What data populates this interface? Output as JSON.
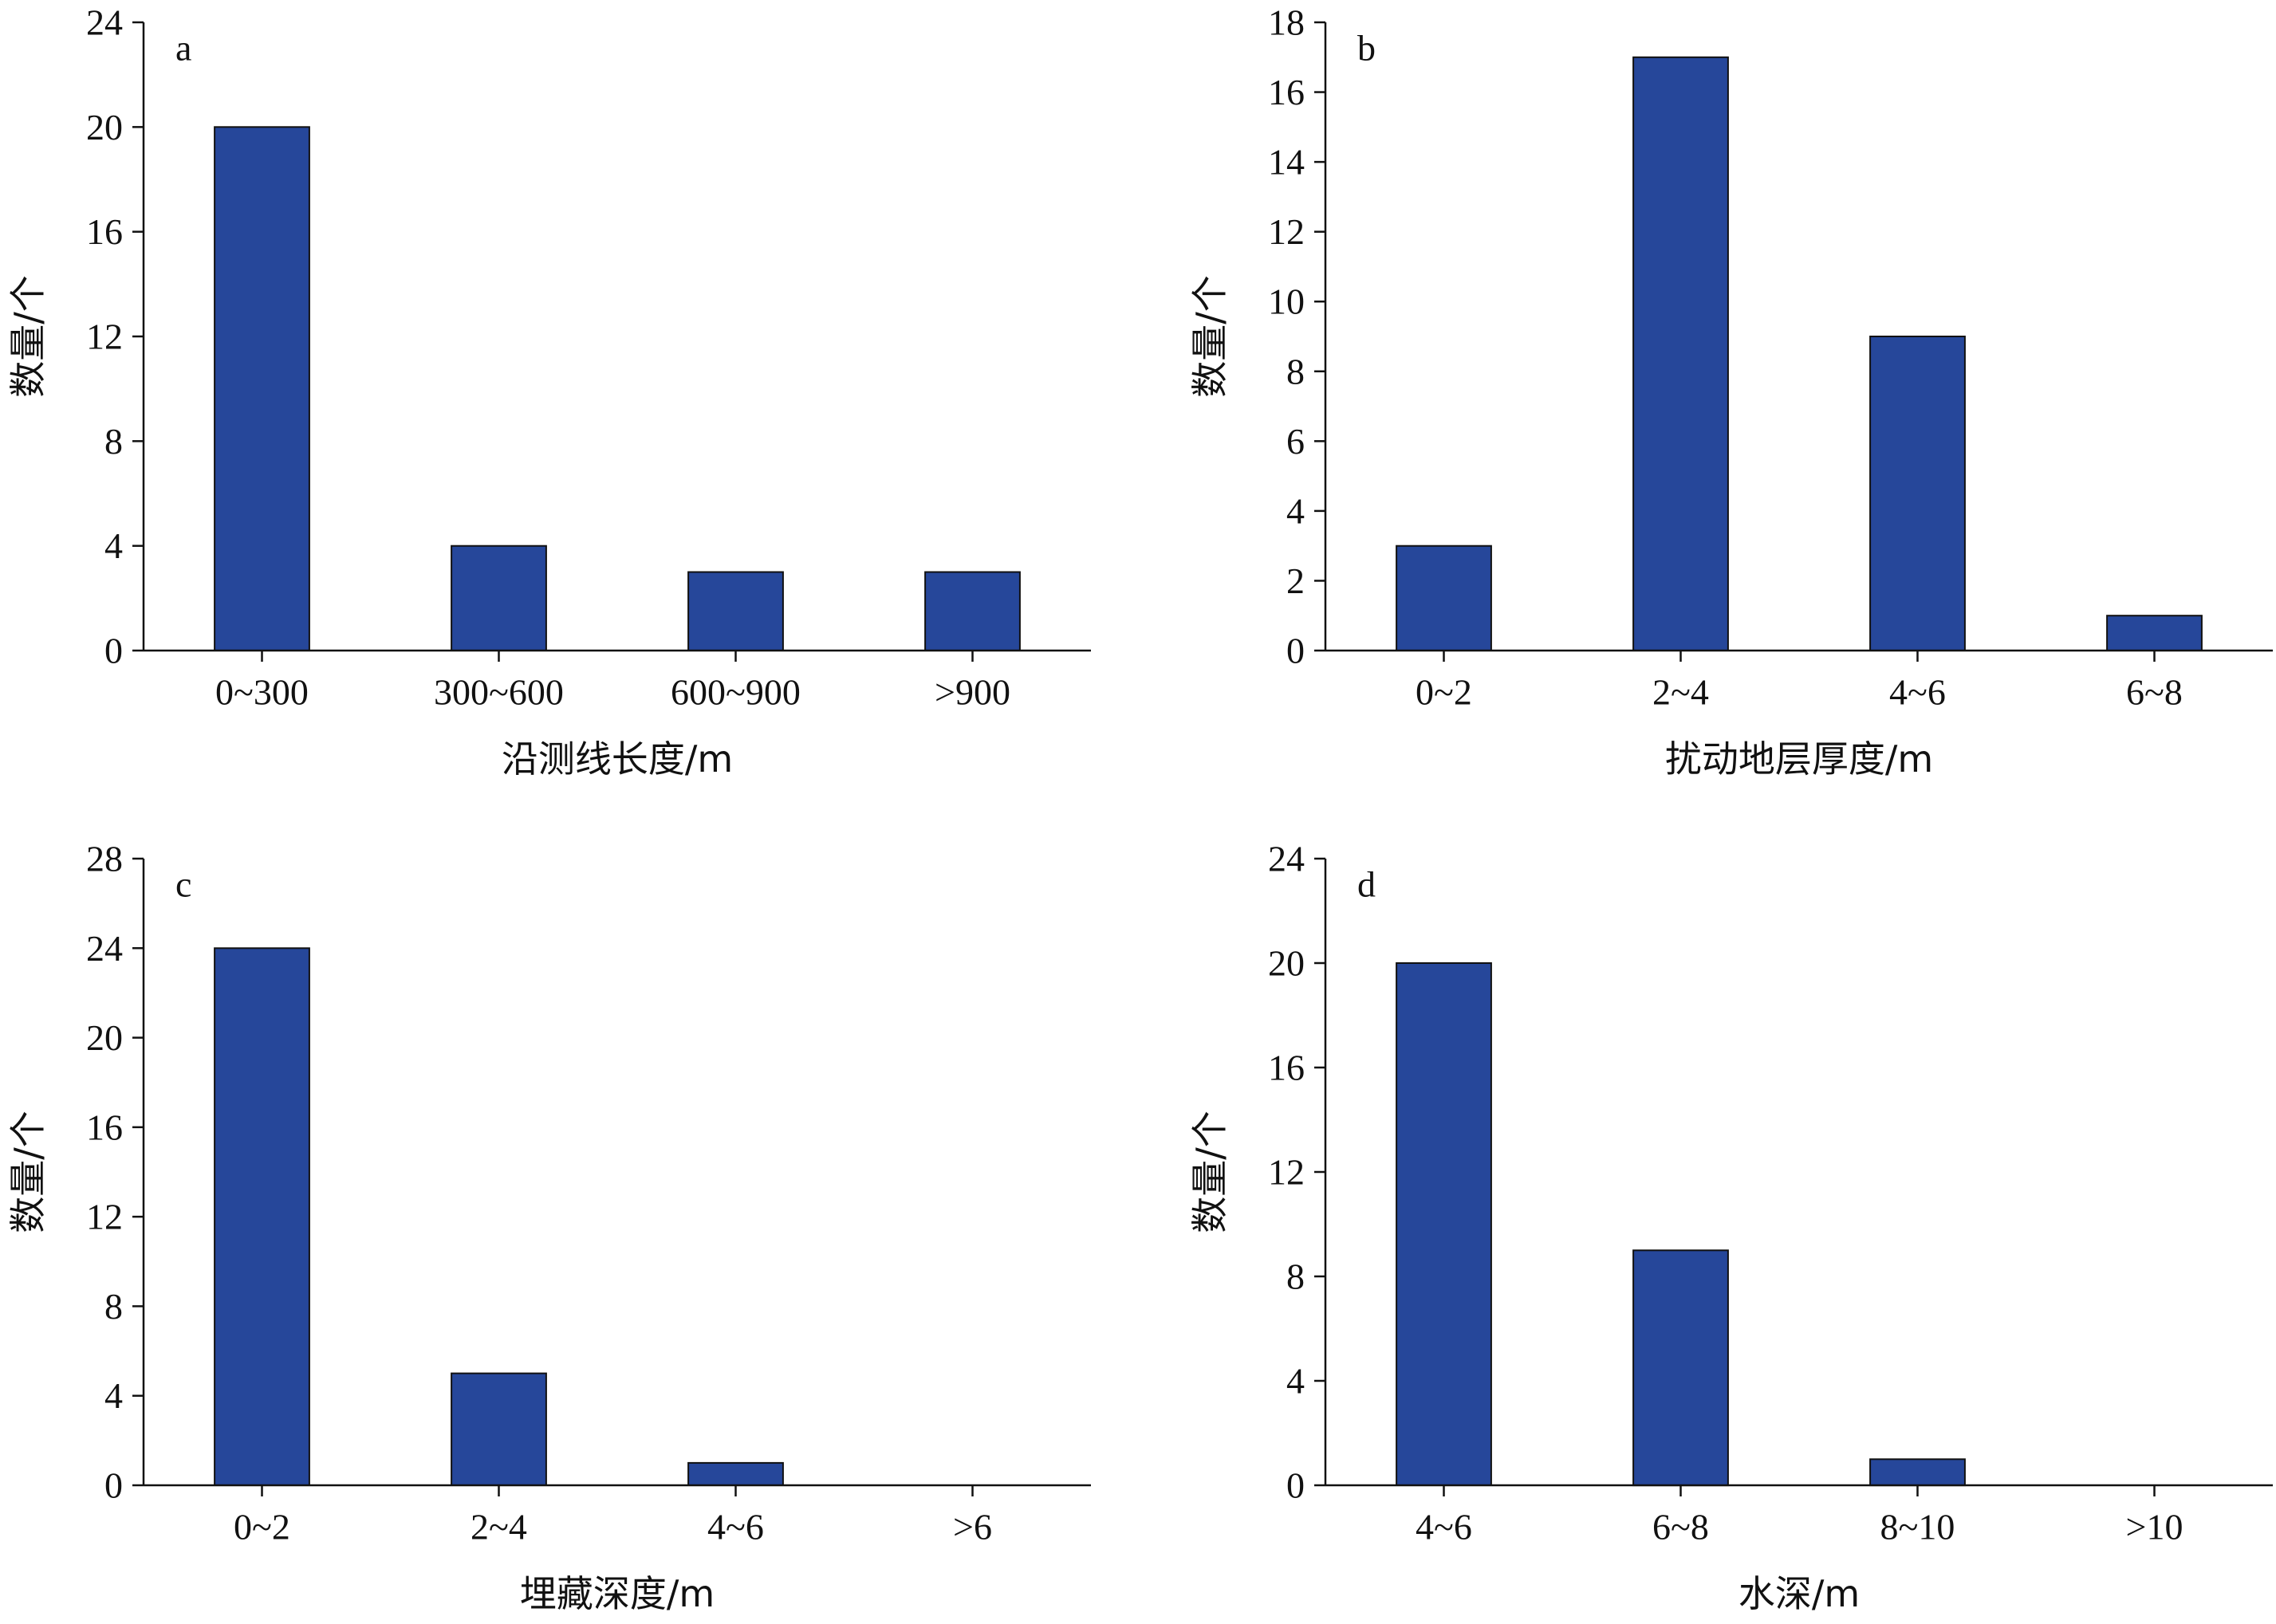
{
  "colors": {
    "bar_fill": "#26479a",
    "axis": "#111111"
  },
  "chart_data": [
    {
      "type": "bar",
      "panel_label": "a",
      "categories": [
        "0~300",
        "300~600",
        "600~900",
        ">900"
      ],
      "values": [
        20,
        4,
        3,
        3
      ],
      "xlabel": "沿测线长度/m",
      "ylabel": "数量/个",
      "ylim": [
        0,
        24
      ],
      "yticks": [
        0,
        4,
        8,
        12,
        16,
        20,
        24
      ],
      "grid": false
    },
    {
      "type": "bar",
      "panel_label": "b",
      "categories": [
        "0~2",
        "2~4",
        "4~6",
        "6~8"
      ],
      "values": [
        3,
        17,
        9,
        1
      ],
      "xlabel": "扰动地层厚度/m",
      "ylabel": "数量/个",
      "ylim": [
        0,
        18
      ],
      "yticks": [
        0,
        2,
        4,
        6,
        8,
        10,
        12,
        14,
        16,
        18
      ],
      "grid": false
    },
    {
      "type": "bar",
      "panel_label": "c",
      "categories": [
        "0~2",
        "2~4",
        "4~6",
        ">6"
      ],
      "values": [
        24,
        5,
        1,
        0
      ],
      "xlabel": "埋藏深度/m",
      "ylabel": "数量/个",
      "ylim": [
        0,
        28
      ],
      "yticks": [
        0,
        4,
        8,
        12,
        16,
        20,
        24,
        28
      ],
      "grid": false
    },
    {
      "type": "bar",
      "panel_label": "d",
      "categories": [
        "4~6",
        "6~8",
        "8~10",
        ">10"
      ],
      "values": [
        20,
        9,
        1,
        0
      ],
      "xlabel": "水深/m",
      "ylabel": "数量/个",
      "ylim": [
        0,
        24
      ],
      "yticks": [
        0,
        4,
        8,
        12,
        16,
        20,
        24
      ],
      "grid": false
    }
  ]
}
